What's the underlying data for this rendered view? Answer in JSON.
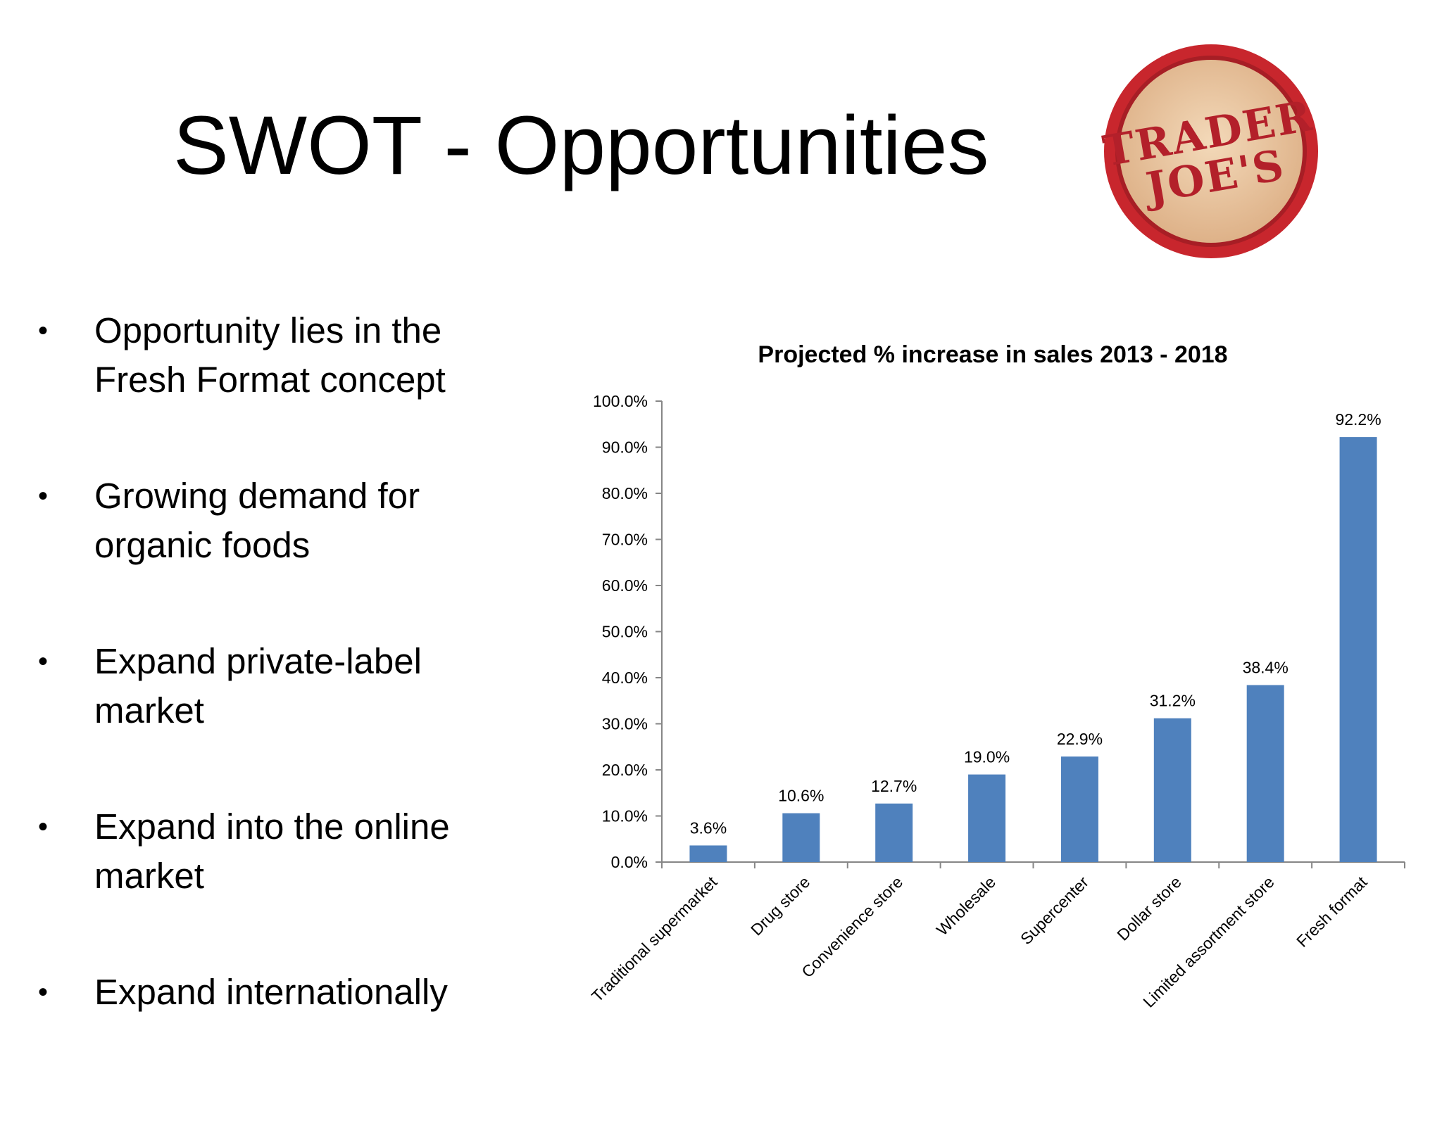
{
  "slide": {
    "title": "SWOT - Opportunities",
    "bullets": [
      {
        "line1": "Opportunity lies in the",
        "line2": "Fresh Format concept"
      },
      {
        "line1": "Growing demand for",
        "line2": "organic foods"
      },
      {
        "line1": "Expand private-label",
        "line2": "market"
      },
      {
        "line1": "Expand into the online",
        "line2": "market"
      },
      {
        "line1": "Expand internationally",
        "line2": ""
      }
    ]
  },
  "logo": {
    "line1": "TRADER",
    "line2": "JOE'S",
    "colors": {
      "ring": "#c8262d",
      "inner": "#ecc8a4",
      "text": "#b3202a"
    }
  },
  "chart_data": {
    "type": "bar",
    "title": "Projected % increase in sales 2013 - 2018",
    "xlabel": "",
    "ylabel": "",
    "categories": [
      "Traditional supermarket",
      "Drug store",
      "Convenience store",
      "Wholesale",
      "Supercenter",
      "Dollar store",
      "Limited assortment store",
      "Fresh format"
    ],
    "values": [
      3.6,
      10.6,
      12.7,
      19.0,
      22.9,
      31.2,
      38.4,
      92.2
    ],
    "data_labels": [
      "3.6%",
      "10.6%",
      "12.7%",
      "19.0%",
      "22.9%",
      "31.2%",
      "38.4%",
      "92.2%"
    ],
    "ylim": [
      0,
      100
    ],
    "yticks": [
      0,
      10,
      20,
      30,
      40,
      50,
      60,
      70,
      80,
      90,
      100
    ],
    "ytick_labels": [
      "0.0%",
      "10.0%",
      "20.0%",
      "30.0%",
      "40.0%",
      "50.0%",
      "60.0%",
      "70.0%",
      "80.0%",
      "90.0%",
      "100.0%"
    ],
    "grid": false,
    "legend": "none",
    "bar_color": "#4f81bd"
  }
}
